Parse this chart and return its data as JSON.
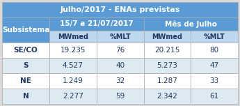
{
  "title": "Julho/2017 - ENAs previstas",
  "col_header1": "15/7 a 21/07/2017",
  "col_header2": "Mês de Julho",
  "sub_headers": [
    "MWmed",
    "%MLT",
    "MWmed",
    "%MLT"
  ],
  "row_header": "Subsistema",
  "rows": [
    [
      "SE/CO",
      "19.235",
      "76",
      "20.215",
      "80"
    ],
    [
      "S",
      "4.527",
      "40",
      "5.273",
      "47"
    ],
    [
      "NE",
      "1.249",
      "32",
      "1.287",
      "33"
    ],
    [
      "N",
      "2.277",
      "59",
      "2.342",
      "61"
    ]
  ],
  "title_bg": "#5b9bd5",
  "title_fg": "#ffffff",
  "header_bg": "#5b9bd5",
  "header_fg": "#ffffff",
  "subheader_bg": "#bdd7ee",
  "subheader_fg": "#1f3864",
  "row_label_bg": "#5b9bd5",
  "row_label_fg": "#ffffff",
  "data_bg_light": "#deeaf1",
  "data_bg_white": "#ffffff",
  "data_fg": "#1f3864",
  "grid_color": "#aaaaaa",
  "fig_bg": "#d9d9d9"
}
